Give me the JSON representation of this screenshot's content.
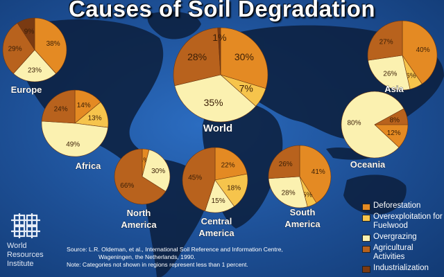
{
  "title": "Causes of Soil Degradation",
  "colors": {
    "deforestation": "#e48a23",
    "overexploitation": "#f6c44c",
    "overgrazing": "#fbf1b0",
    "agricultural": "#b8621d",
    "industrialization": "#7a3a12",
    "ocean": "#1d4f95",
    "land": "#0c1f3d"
  },
  "chart_data": {
    "type": "pie",
    "title": "Causes of Soil Degradation",
    "legend": {
      "placement": "bottom-right",
      "entries": [
        {
          "key": "deforestation",
          "label": "Deforestation"
        },
        {
          "key": "overexploitation",
          "label": "Overexploitation for Fuelwood"
        },
        {
          "key": "overgrazing",
          "label": "Overgrazing"
        },
        {
          "key": "agricultural",
          "label": "Agricultural Activities"
        },
        {
          "key": "industrialization",
          "label": "Industrialization"
        }
      ]
    },
    "pies": [
      {
        "region": "Europe",
        "slices": [
          {
            "cat": "deforestation",
            "value": 38
          },
          {
            "cat": "overgrazing",
            "value": 23
          },
          {
            "cat": "agricultural",
            "value": 29
          },
          {
            "cat": "industrialization",
            "value": 9
          }
        ]
      },
      {
        "region": "Asia",
        "slices": [
          {
            "cat": "deforestation",
            "value": 40
          },
          {
            "cat": "overexploitation",
            "value": 6
          },
          {
            "cat": "overgrazing",
            "value": 26
          },
          {
            "cat": "agricultural",
            "value": 27
          }
        ]
      },
      {
        "region": "World",
        "slices": [
          {
            "cat": "deforestation",
            "value": 30
          },
          {
            "cat": "overexploitation",
            "value": 7
          },
          {
            "cat": "overgrazing",
            "value": 35
          },
          {
            "cat": "agricultural",
            "value": 28
          },
          {
            "cat": "industrialization",
            "value": 1
          }
        ]
      },
      {
        "region": "Africa",
        "slices": [
          {
            "cat": "deforestation",
            "value": 14
          },
          {
            "cat": "overexploitation",
            "value": 13
          },
          {
            "cat": "overgrazing",
            "value": 49
          },
          {
            "cat": "agricultural",
            "value": 24
          }
        ]
      },
      {
        "region": "Oceania",
        "slices": [
          {
            "cat": "deforestation",
            "value": 12
          },
          {
            "cat": "overgrazing",
            "value": 80
          },
          {
            "cat": "agricultural",
            "value": 8
          }
        ]
      },
      {
        "region": "North America",
        "slices": [
          {
            "cat": "deforestation",
            "value": 4
          },
          {
            "cat": "overgrazing",
            "value": 30
          },
          {
            "cat": "agricultural",
            "value": 66
          }
        ]
      },
      {
        "region": "Central America",
        "slices": [
          {
            "cat": "deforestation",
            "value": 22
          },
          {
            "cat": "overexploitation",
            "value": 18
          },
          {
            "cat": "overgrazing",
            "value": 15
          },
          {
            "cat": "agricultural",
            "value": 45
          }
        ]
      },
      {
        "region": "South America",
        "slices": [
          {
            "cat": "deforestation",
            "value": 41
          },
          {
            "cat": "overexploitation",
            "value": 5
          },
          {
            "cat": "overgrazing",
            "value": 28
          },
          {
            "cat": "agricultural",
            "value": 26
          }
        ]
      }
    ]
  },
  "source": {
    "line1": "Source: L.R. Oldeman, et al., International Soil Reference and Information Centre,",
    "line2": "Wageningen, the Netherlands, 1990.",
    "note": "Note: Categories not shown in regions represent less than 1 percent."
  },
  "logo": {
    "icon": "wri-knot-logo",
    "line1": "World",
    "line2": "Resources",
    "line3": "Institute"
  }
}
